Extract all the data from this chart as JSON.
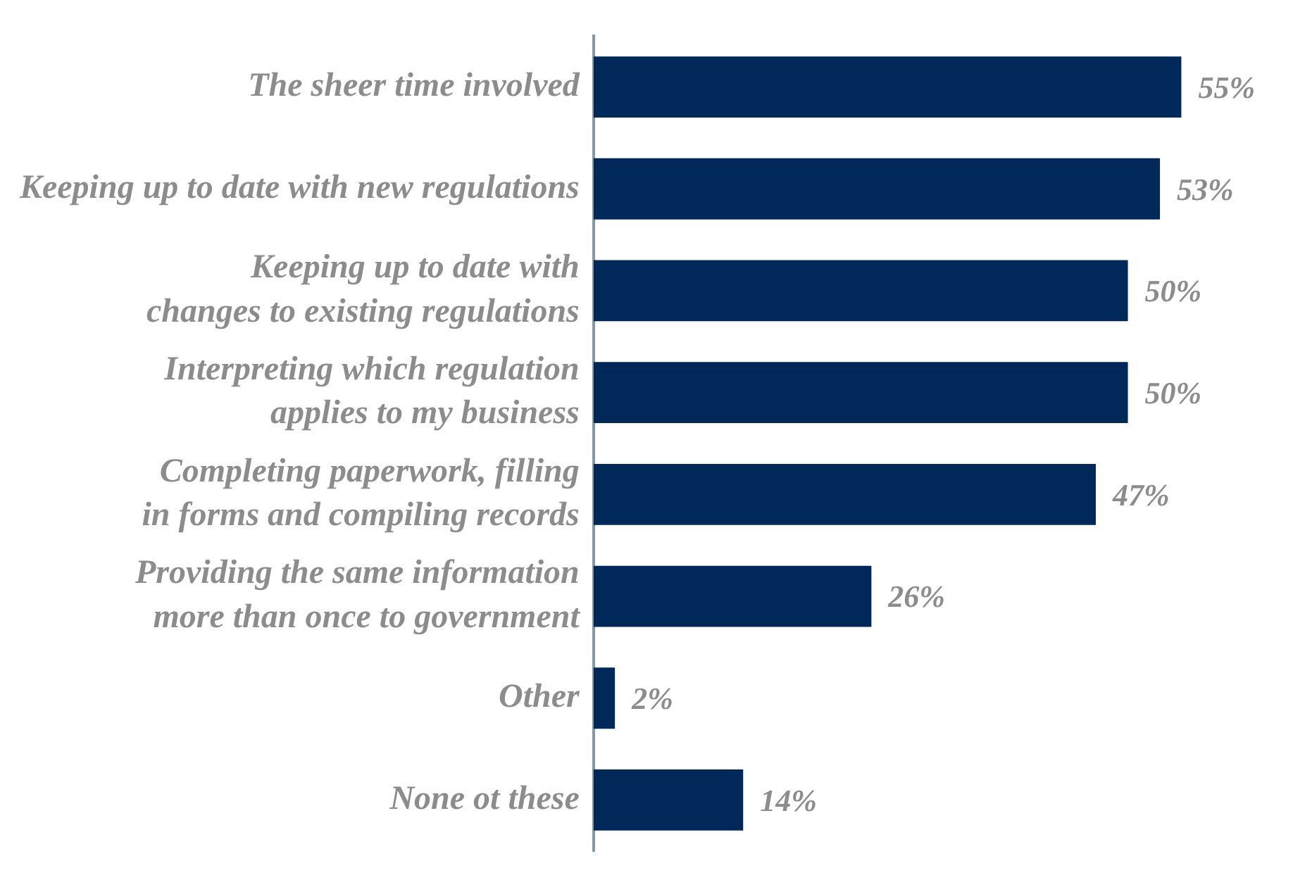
{
  "chart_data": {
    "type": "bar",
    "orientation": "horizontal",
    "categories": [
      "The sheer time involved",
      "Keeping up to date with new regulations",
      "Keeping up to date with changes to existing regulations",
      "Interpreting which regulation applies to my business",
      "Completing paperwork, filling in forms and compiling records",
      "Providing the same information more than once to government",
      "Other",
      "None ot these"
    ],
    "values": [
      55,
      53,
      50,
      50,
      47,
      26,
      2,
      14
    ],
    "value_labels": [
      "55%",
      "53%",
      "50%",
      "50%",
      "47%",
      "26%",
      "2%",
      "14%"
    ],
    "color": "#002859",
    "legend": false,
    "grid": false
  }
}
